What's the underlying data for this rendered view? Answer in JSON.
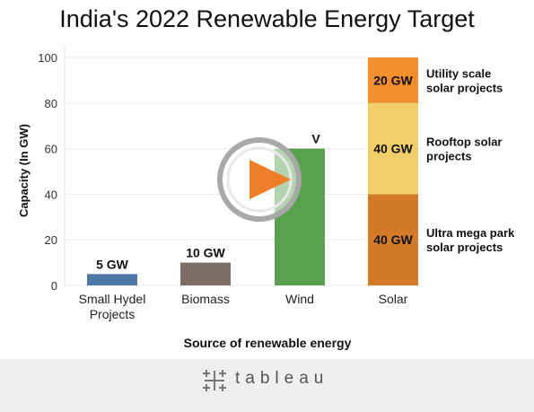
{
  "chart_data": {
    "type": "bar",
    "title": "India's 2022 Renewable Energy Target",
    "xlabel": "Source of renewable energy",
    "ylabel": "Capacity (In GW)",
    "ylim": [
      0,
      100
    ],
    "yticks": [
      "0",
      "20",
      "40",
      "60",
      "80",
      "100"
    ],
    "grid": true,
    "categories": [
      {
        "label": [
          "Small Hydel",
          "Projects"
        ]
      },
      {
        "label": [
          "Biomass"
        ]
      },
      {
        "label": [
          "Wind"
        ]
      },
      {
        "label": [
          "Solar"
        ]
      }
    ],
    "bars": [
      {
        "category": "Small Hydel Projects",
        "value": 5,
        "value_label": "5 GW",
        "color": "#4e79a7"
      },
      {
        "category": "Biomass",
        "value": 10,
        "value_label": "10 GW",
        "color": "#7d6d66"
      },
      {
        "category": "Wind",
        "value": 60,
        "value_label": "V",
        "color": "#59a14f"
      },
      {
        "category": "Solar",
        "segments": [
          {
            "value": 40,
            "value_label": "40 GW",
            "name": [
              "Ultra mega park",
              "solar projects"
            ],
            "color": "#d27a28"
          },
          {
            "value": 40,
            "value_label": "40 GW",
            "name": [
              "Rooftop solar",
              "projects"
            ],
            "color": "#f0ce6a"
          },
          {
            "value": 20,
            "value_label": "20 GW",
            "name": [
              "Utility scale",
              "solar projects"
            ],
            "color": "#f28e2b"
          }
        ]
      }
    ]
  },
  "overlay": {
    "icon": "play-icon"
  },
  "footer": {
    "brand": "tableau",
    "icon": "tableau-logo-icon"
  }
}
